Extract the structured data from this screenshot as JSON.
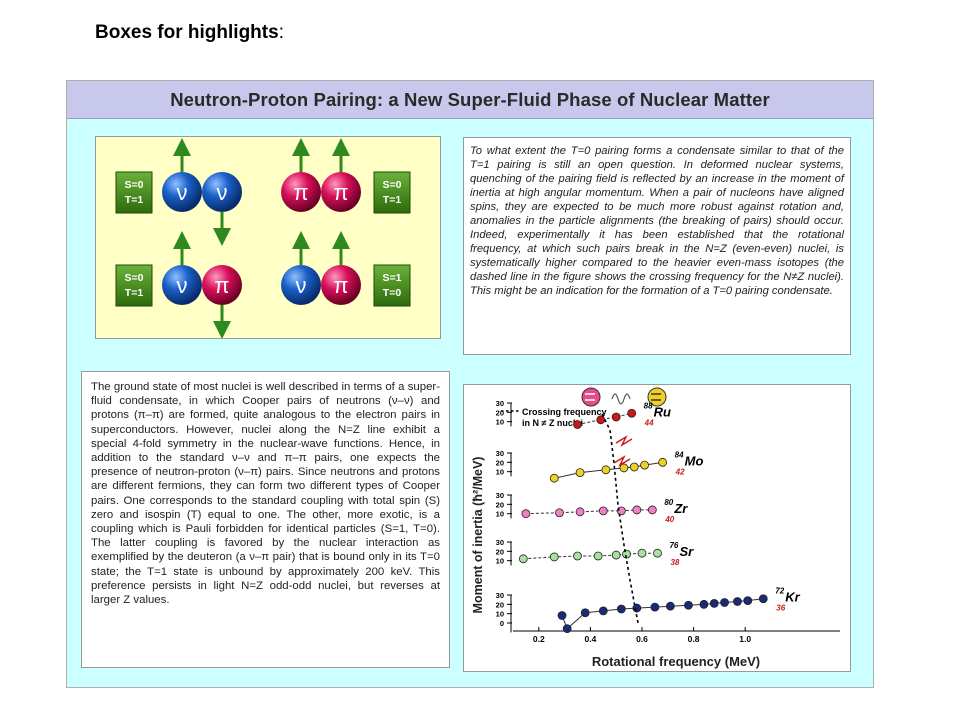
{
  "header": {
    "title": "Boxes for highlights",
    "colon": ":"
  },
  "poster": {
    "title": "Neutron-Proton Pairing: a New Super-Fluid Phase of Nuclear Matter",
    "pairs_diagram": {
      "particles": {
        "neutron": "ν",
        "proton": "π"
      },
      "labels": [
        {
          "s": "S=0",
          "t": "T=1"
        },
        {
          "s": "S=0",
          "t": "T=1"
        },
        {
          "s": "S=0",
          "t": "T=1"
        },
        {
          "s": "S=1",
          "t": "T=0"
        }
      ],
      "colors": {
        "neutron": "#1a5fc8",
        "proton": "#d8105a",
        "label_box": "#3a8a12",
        "arrow": "#2e8a1e"
      }
    },
    "right_text": "To what extent the T=0 pairing forms a condensate similar to that of the T=1 pairing is still an open question. In deformed nuclear systems, quenching of the pairing field is reflected by an increase in the moment of inertia at high angular momentum. When a pair of nucleons have aligned spins, they are expected to be much more robust against rotation and, anomalies in the particle alignments (the breaking of pairs) should occur. Indeed, experimentally it has been established that the rotational frequency, at which such pairs break in the N=Z (even-even) nuclei, is systematically higher compared to the heavier even-mass isotopes (the dashed line in the figure shows the crossing frequency for the N≠Z nuclei). This might be an indication for the formation of a T=0 pairing condensate.",
    "left_text": "The ground state of most nuclei is well described in terms of a super-fluid condensate, in which Cooper pairs of neutrons (ν–ν) and protons (π–π) are formed, quite analogous to the electron pairs in superconductors. However, nuclei along the N=Z line exhibit a special 4-fold symmetry in the nuclear-wave functions. Hence, in addition to the standard ν–ν and π–π pairs, one expects the presence of neutron-proton (ν–π) pairs. Since neutrons and protons are different fermions, they can form two different types of Cooper pairs. One corresponds to the standard coupling with total spin (S) zero and isospin (T) equal to one. The other, more exotic, is a coupling which is Pauli forbidden for identical particles (S=1, T=0). The latter coupling is favored by the nuclear interaction as exemplified by the deuteron (a ν–π pair) that is bound only in its T=0 state; the T=1 state is unbound by approximately 200 keV. This preference persists in light N=Z odd-odd nuclei, but reverses at larger Z values."
  },
  "chart_data": {
    "type": "scatter",
    "xlabel": "Rotational frequency (MeV)",
    "ylabel": "Moment of inertia (ħ²/MeV)",
    "xlim": [
      0.1,
      1.1
    ],
    "x_ticks": [
      0.2,
      0.4,
      0.6,
      0.8,
      1.0
    ],
    "x_tick_labels": [
      "0.2",
      "0.4",
      "0.6",
      "0.8",
      "1.0"
    ],
    "y_ticks": [
      0,
      10,
      20,
      30
    ],
    "y_tick_labels": [
      "0",
      "10",
      "20",
      "30"
    ],
    "legend_text": "Crossing frequency\nin N ≠ Z nuclei",
    "series": [
      {
        "nucleus": "Ru",
        "mass": "88",
        "z": "44",
        "color": "#cc1818",
        "dash": true,
        "x": [
          0.35,
          0.44,
          0.5,
          0.56
        ],
        "y": [
          7,
          12,
          15,
          19
        ]
      },
      {
        "nucleus": "Mo",
        "mass": "84",
        "z": "42",
        "color": "#f0d020",
        "dash": false,
        "x": [
          0.26,
          0.36,
          0.46,
          0.53,
          0.57,
          0.61,
          0.68
        ],
        "y": [
          3,
          9,
          12,
          14,
          15,
          17,
          20
        ]
      },
      {
        "nucleus": "Zr",
        "mass": "80",
        "z": "40",
        "color": "#f080c8",
        "dash": true,
        "x": [
          0.15,
          0.28,
          0.36,
          0.45,
          0.52,
          0.58,
          0.64
        ],
        "y": [
          10,
          11,
          12,
          13,
          13,
          14,
          14
        ]
      },
      {
        "nucleus": "Sr",
        "mass": "76",
        "z": "38",
        "color": "#a8e0a0",
        "dash": true,
        "x": [
          0.14,
          0.26,
          0.35,
          0.43,
          0.5,
          0.54,
          0.6,
          0.66
        ],
        "y": [
          12,
          14,
          15,
          15,
          16,
          17,
          18,
          18
        ]
      },
      {
        "nucleus": "Kr",
        "mass": "72",
        "z": "36",
        "color": "#1a2a78",
        "dash": false,
        "x": [
          0.29,
          0.31,
          0.38,
          0.45,
          0.52,
          0.58,
          0.65,
          0.71,
          0.78,
          0.84,
          0.88,
          0.92,
          0.97,
          1.01,
          1.07
        ],
        "y": [
          8,
          -6,
          11,
          13,
          15,
          16,
          17,
          18,
          19,
          20,
          21,
          22,
          23,
          24,
          26
        ]
      }
    ]
  }
}
